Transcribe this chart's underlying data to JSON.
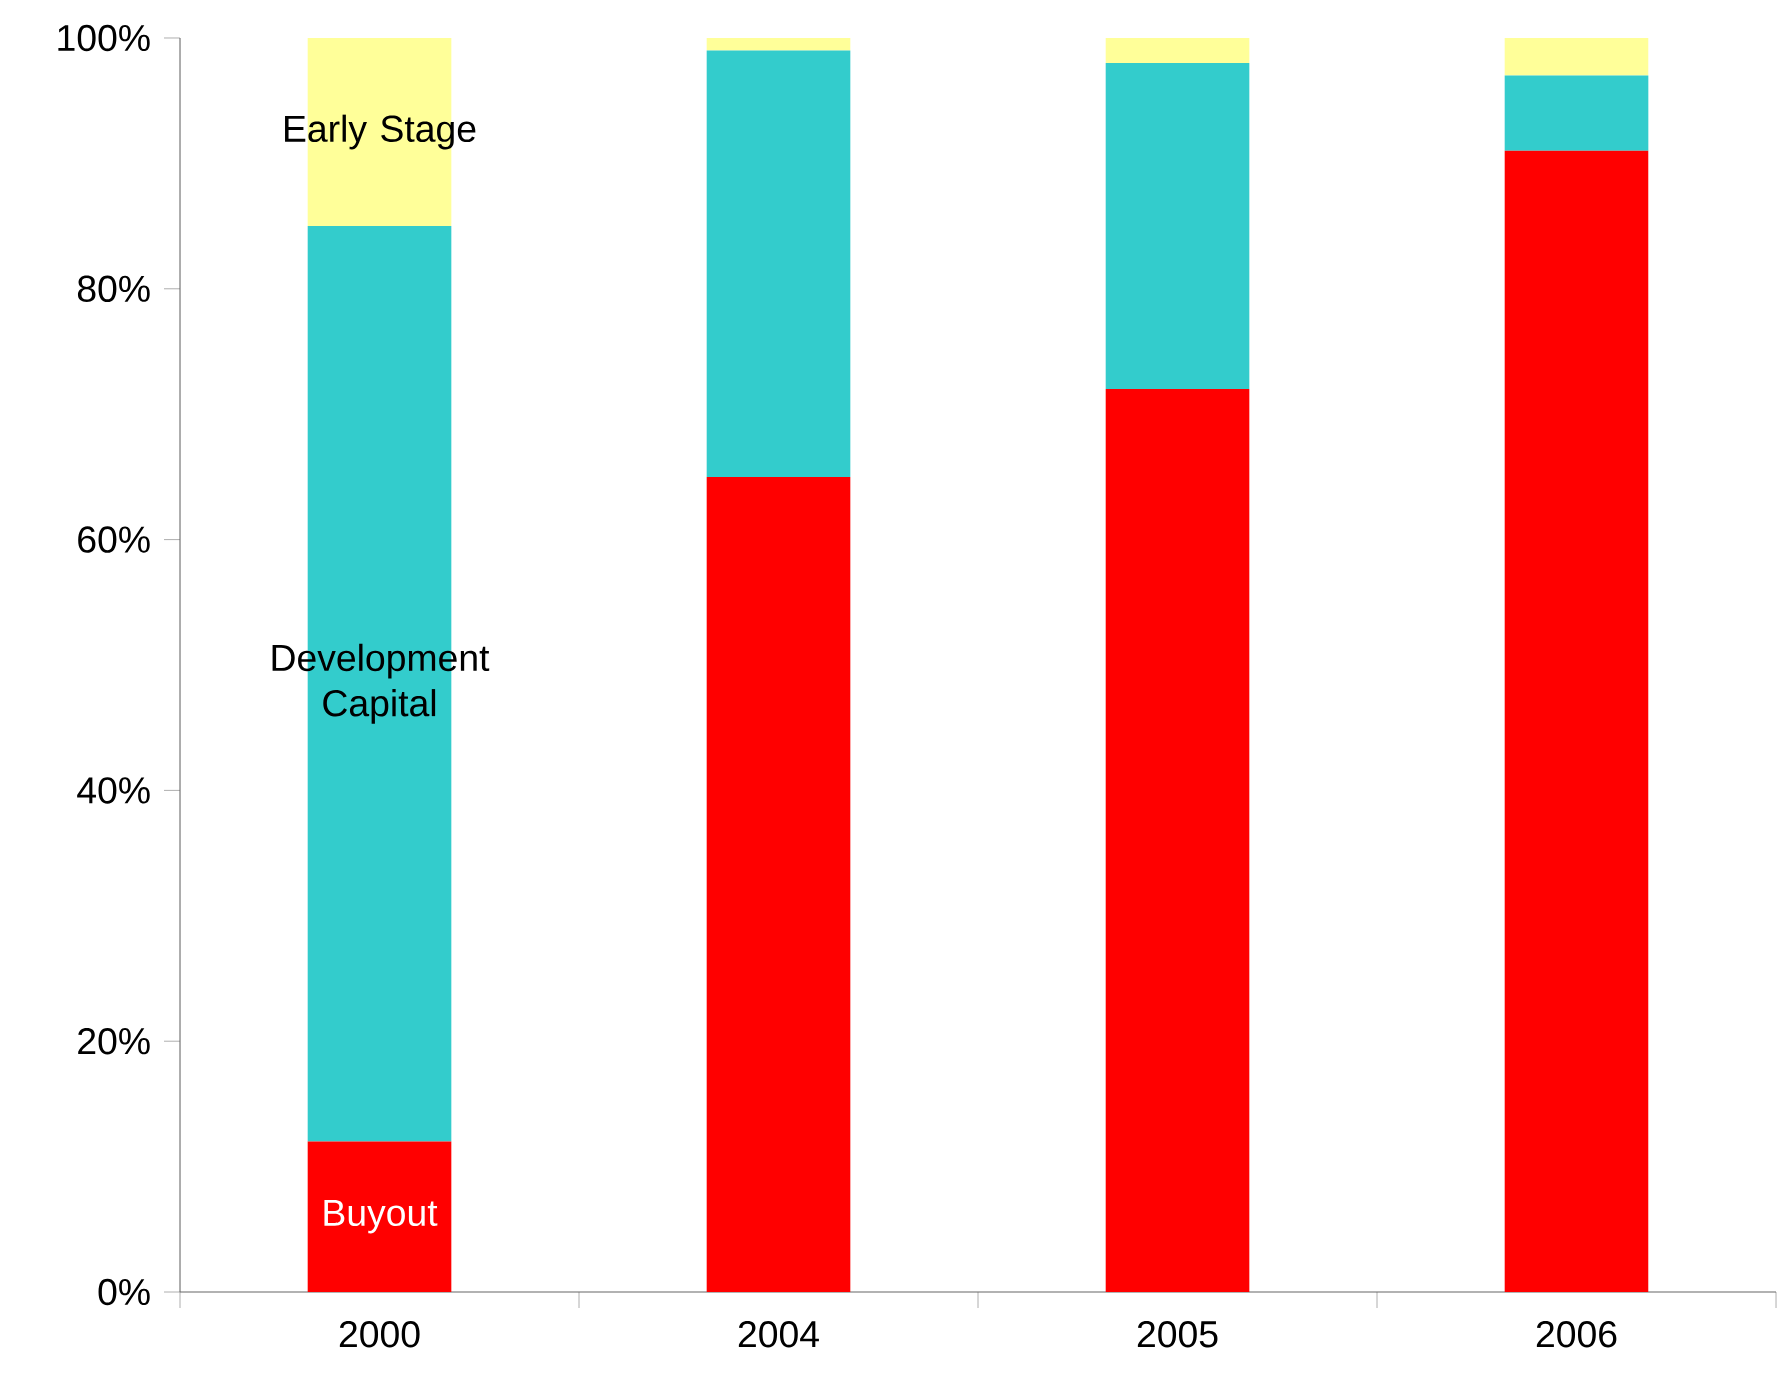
{
  "chart_data": {
    "type": "bar",
    "stacked": true,
    "categories": [
      "2000",
      "2004",
      "2005",
      "2006"
    ],
    "series": [
      {
        "name": "Buyout",
        "color": "#ff0000",
        "values": [
          12,
          65,
          72,
          91
        ]
      },
      {
        "name": "Development Capital",
        "color": "#33cccc",
        "values": [
          73,
          34,
          26,
          6
        ]
      },
      {
        "name": "Early Stage",
        "color": "#ffff99",
        "values": [
          15,
          1,
          2,
          3
        ]
      }
    ],
    "ylim": [
      0,
      100
    ],
    "yticks": [
      {
        "value": 0,
        "label": "0%"
      },
      {
        "value": 20,
        "label": "20%"
      },
      {
        "value": 40,
        "label": "40%"
      },
      {
        "value": 60,
        "label": "60%"
      },
      {
        "value": 80,
        "label": "80%"
      },
      {
        "value": 100,
        "label": "100%"
      }
    ],
    "grid": false,
    "legend": false
  }
}
